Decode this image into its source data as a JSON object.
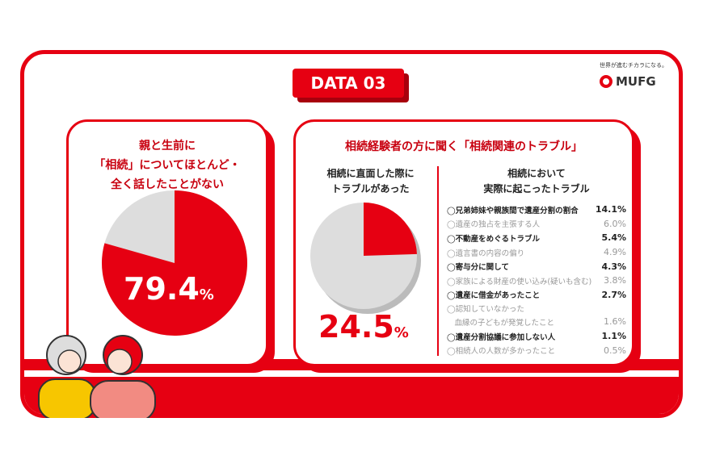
{
  "badge": "DATA 03",
  "logo": {
    "tagline": "世界が進むチカラになる。",
    "name": "MUFG"
  },
  "brand_color": "#e60012",
  "left": {
    "title": [
      "親と生前に",
      "「相続」についてほとんど・",
      "全く話したことがない"
    ],
    "value": "79.4",
    "unit": "%",
    "percent": 79.4
  },
  "right": {
    "title": "相続経験者の方に聞く「相続関連のトラブル」",
    "pie_label": [
      "相続に直面した際に",
      "トラブルがあった"
    ],
    "value": "24.5",
    "unit": "%",
    "percent": 24.5,
    "list_title": [
      "相続において",
      "実際に起こったトラブル"
    ],
    "items": [
      {
        "label": "◯兄弟姉妹や親族間で遺産分割の割合",
        "value": "14.1%"
      },
      {
        "label": "◯遺産の独占を主張する人",
        "value": "6.0%"
      },
      {
        "label": "◯不動産をめぐるトラブル",
        "value": "5.4%"
      },
      {
        "label": "◯遺言書の内容の偏り",
        "value": "4.9%"
      },
      {
        "label": "◯寄与分に関して",
        "value": "4.3%"
      },
      {
        "label": "◯家族による財産の使い込み(疑いも含む)",
        "value": "3.8%"
      },
      {
        "label": "◯遺産に借金があったこと",
        "value": "2.7%"
      },
      {
        "label": "◯認知していなかった",
        "value": ""
      },
      {
        "label": "　血縁の子どもが発覚したこと",
        "value": "1.6%"
      },
      {
        "label": "◯遺産分割協議に参加しない人",
        "value": "1.1%"
      },
      {
        "label": "◯相続人の人数が多かったこと",
        "value": "0.5%"
      }
    ]
  }
}
